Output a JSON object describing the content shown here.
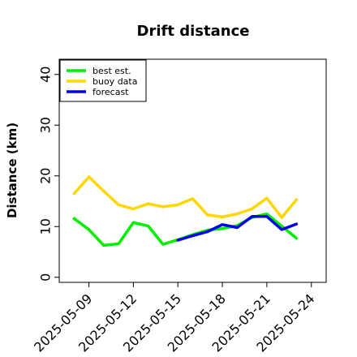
{
  "chart_data": {
    "type": "line",
    "title": "Drift distance",
    "xlabel": "",
    "ylabel": "Distance (km)",
    "ylim": [
      -1,
      43
    ],
    "xlim": [
      "2025-05-07",
      "2025-05-25"
    ],
    "yticks": [
      0,
      10,
      20,
      30,
      40
    ],
    "xticks": [
      "2025-05-09",
      "2025-05-12",
      "2025-05-15",
      "2025-05-18",
      "2025-05-21",
      "2025-05-24"
    ],
    "highlight_tick": "2025-05-15",
    "highlight_color": "#228b22",
    "grid": false,
    "legend": {
      "position": "top-left",
      "entries": [
        "best est.",
        "buoy data",
        "forecast"
      ]
    },
    "series": [
      {
        "name": "buoy data",
        "color": "#ffd700",
        "points": [
          [
            "2025-05-08",
            16.5
          ],
          [
            "2025-05-09",
            19.8
          ],
          [
            "2025-05-10",
            17.0
          ],
          [
            "2025-05-11",
            14.3
          ],
          [
            "2025-05-12",
            13.5
          ],
          [
            "2025-05-13",
            14.5
          ],
          [
            "2025-05-14",
            13.9
          ],
          [
            "2025-05-15",
            14.3
          ],
          [
            "2025-05-16",
            15.5
          ],
          [
            "2025-05-17",
            12.3
          ],
          [
            "2025-05-18",
            11.9
          ],
          [
            "2025-05-19",
            12.5
          ],
          [
            "2025-05-20",
            13.5
          ],
          [
            "2025-05-21",
            15.6
          ],
          [
            "2025-05-22",
            11.8
          ],
          [
            "2025-05-23",
            15.3
          ]
        ]
      },
      {
        "name": "best est.",
        "color": "#00ee00",
        "points": [
          [
            "2025-05-08",
            11.6
          ],
          [
            "2025-05-09",
            9.4
          ],
          [
            "2025-05-10",
            6.3
          ],
          [
            "2025-05-11",
            6.6
          ],
          [
            "2025-05-12",
            10.8
          ],
          [
            "2025-05-13",
            10.1
          ],
          [
            "2025-05-14",
            6.5
          ],
          [
            "2025-05-15",
            7.4
          ],
          [
            "2025-05-16",
            8.4
          ],
          [
            "2025-05-17",
            9.3
          ],
          [
            "2025-05-18",
            9.6
          ],
          [
            "2025-05-19",
            10.2
          ],
          [
            "2025-05-20",
            11.8
          ],
          [
            "2025-05-21",
            12.5
          ],
          [
            "2025-05-22",
            10.1
          ],
          [
            "2025-05-23",
            7.7
          ]
        ]
      },
      {
        "name": "forecast",
        "color": "#0000ee",
        "points": [
          [
            "2025-05-15",
            7.3
          ],
          [
            "2025-05-16",
            8.2
          ],
          [
            "2025-05-17",
            9.0
          ],
          [
            "2025-05-18",
            10.4
          ],
          [
            "2025-05-19",
            9.8
          ],
          [
            "2025-05-20",
            12.0
          ],
          [
            "2025-05-21",
            12.0
          ],
          [
            "2025-05-22",
            9.4
          ],
          [
            "2025-05-23",
            10.5
          ]
        ]
      }
    ]
  }
}
